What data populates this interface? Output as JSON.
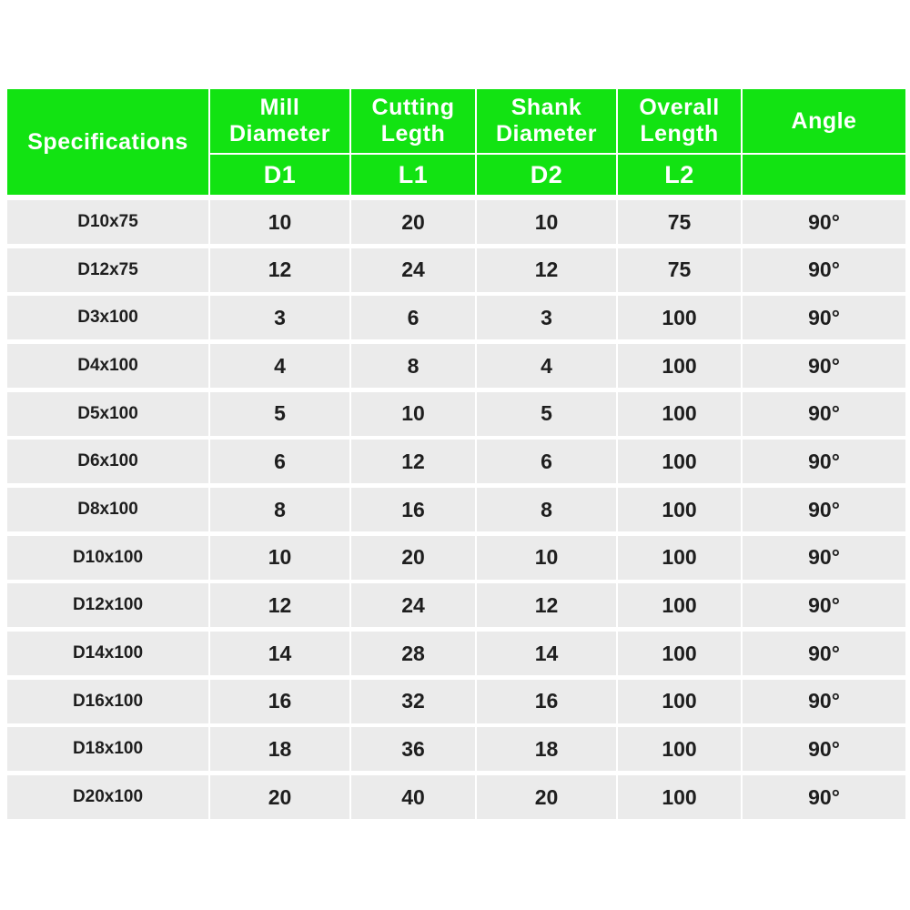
{
  "header": {
    "columns": [
      {
        "title": "Specifications"
      },
      {
        "title": "Mill\nDiameter",
        "symbol": "D1"
      },
      {
        "title": "Cutting\nLegth",
        "symbol": "L1"
      },
      {
        "title": "Shank\nDiameter",
        "symbol": "D2"
      },
      {
        "title": "Overall\nLength",
        "symbol": "L2"
      },
      {
        "title": "Angle"
      }
    ]
  },
  "table": {
    "rows": [
      [
        "D10x75",
        "10",
        "20",
        "10",
        "75",
        "90°"
      ],
      [
        "D12x75",
        "12",
        "24",
        "12",
        "75",
        "90°"
      ],
      [
        "D3x100",
        "3",
        "6",
        "3",
        "100",
        "90°"
      ],
      [
        "D4x100",
        "4",
        "8",
        "4",
        "100",
        "90°"
      ],
      [
        "D5x100",
        "5",
        "10",
        "5",
        "100",
        "90°"
      ],
      [
        "D6x100",
        "6",
        "12",
        "6",
        "100",
        "90°"
      ],
      [
        "D8x100",
        "8",
        "16",
        "8",
        "100",
        "90°"
      ],
      [
        "D10x100",
        "10",
        "20",
        "10",
        "100",
        "90°"
      ],
      [
        "D12x100",
        "12",
        "24",
        "12",
        "100",
        "90°"
      ],
      [
        "D14x100",
        "14",
        "28",
        "14",
        "100",
        "90°"
      ],
      [
        "D16x100",
        "16",
        "32",
        "16",
        "100",
        "90°"
      ],
      [
        "D18x100",
        "18",
        "36",
        "18",
        "100",
        "90°"
      ],
      [
        "D20x100",
        "20",
        "40",
        "20",
        "100",
        "90°"
      ]
    ]
  }
}
